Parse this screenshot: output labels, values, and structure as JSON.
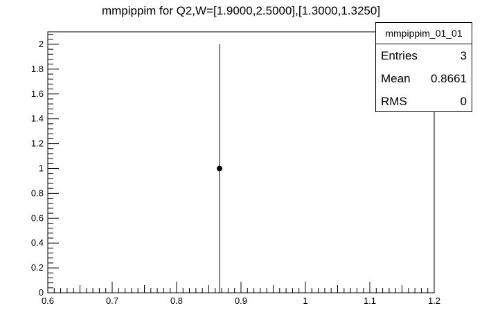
{
  "chart_data": {
    "type": "scatter",
    "title": "mmpippim for Q2,W=[1.9000,2.5000],[1.3000,1.3250]",
    "xlabel": "",
    "ylabel": "",
    "xlim": [
      0.6,
      1.2
    ],
    "ylim": [
      0,
      2.1
    ],
    "x_ticks": [
      0.6,
      0.7,
      0.8,
      0.9,
      1,
      1.1,
      1.2
    ],
    "x_tick_labels": [
      "0.6",
      "0.7",
      "0.8",
      "0.9",
      "1",
      "1.1",
      "1.2"
    ],
    "y_ticks": [
      0,
      0.2,
      0.4,
      0.6,
      0.8,
      1,
      1.2,
      1.4,
      1.6,
      1.8,
      2
    ],
    "y_tick_labels": [
      "0",
      "0.2",
      "0.4",
      "0.6",
      "0.8",
      "1",
      "1.2",
      "1.4",
      "1.6",
      "1.8",
      "2"
    ],
    "grid": false,
    "points": [
      {
        "x": 0.8667,
        "y": 1,
        "err_low": 1,
        "err_high": 1
      }
    ],
    "stats": {
      "name": "mmpippim_01_01",
      "rows": [
        {
          "label": "Entries",
          "value": "3"
        },
        {
          "label": "Mean",
          "value": "0.8661"
        },
        {
          "label": "RMS",
          "value": "0"
        }
      ],
      "placement": "top-right"
    }
  }
}
